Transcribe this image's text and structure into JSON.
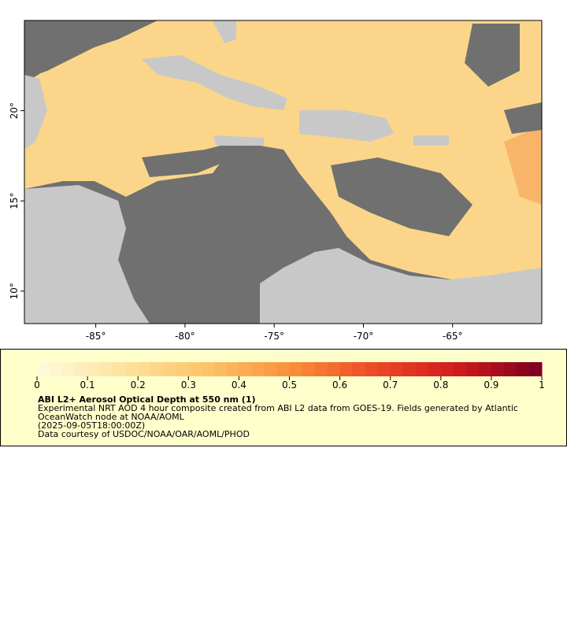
{
  "map": {
    "xlim": [
      -89,
      -60
    ],
    "ylim": [
      8.2,
      25
    ],
    "xticks": [
      {
        "value": -85,
        "label": "-85°"
      },
      {
        "value": -80,
        "label": "-80°"
      },
      {
        "value": -75,
        "label": "-75°"
      },
      {
        "value": -70,
        "label": "-70°"
      },
      {
        "value": -65,
        "label": "-65°"
      }
    ],
    "yticks": [
      {
        "value": 10,
        "label": "10°"
      },
      {
        "value": 15,
        "label": "15°"
      },
      {
        "value": 20,
        "label": "20°"
      }
    ]
  },
  "legend": {
    "colorbar": {
      "range": [
        0,
        1
      ],
      "ticks": [
        0,
        0.1,
        0.2,
        0.3,
        0.4,
        0.5,
        0.6,
        0.7,
        0.8,
        0.9,
        1
      ],
      "colors": [
        "#fffbe0",
        "#fde39e",
        "#fcc56a",
        "#f9913c",
        "#ee4a25",
        "#d01a1e",
        "#7a0020"
      ]
    },
    "title": "ABI L2+ Aerosol Optical Depth at 550 nm (1)",
    "lines": [
      "Experimental NRT AOD 4 hour composite created from ABI L2 data from GOES-19. Fields generated by Atlantic",
      "OceanWatch node at NOAA/AOML",
      "(2025-09-05T18:00:00Z)",
      "Data courtesy of USDOC/NOAA/OAR/AOML/PHOD"
    ]
  }
}
